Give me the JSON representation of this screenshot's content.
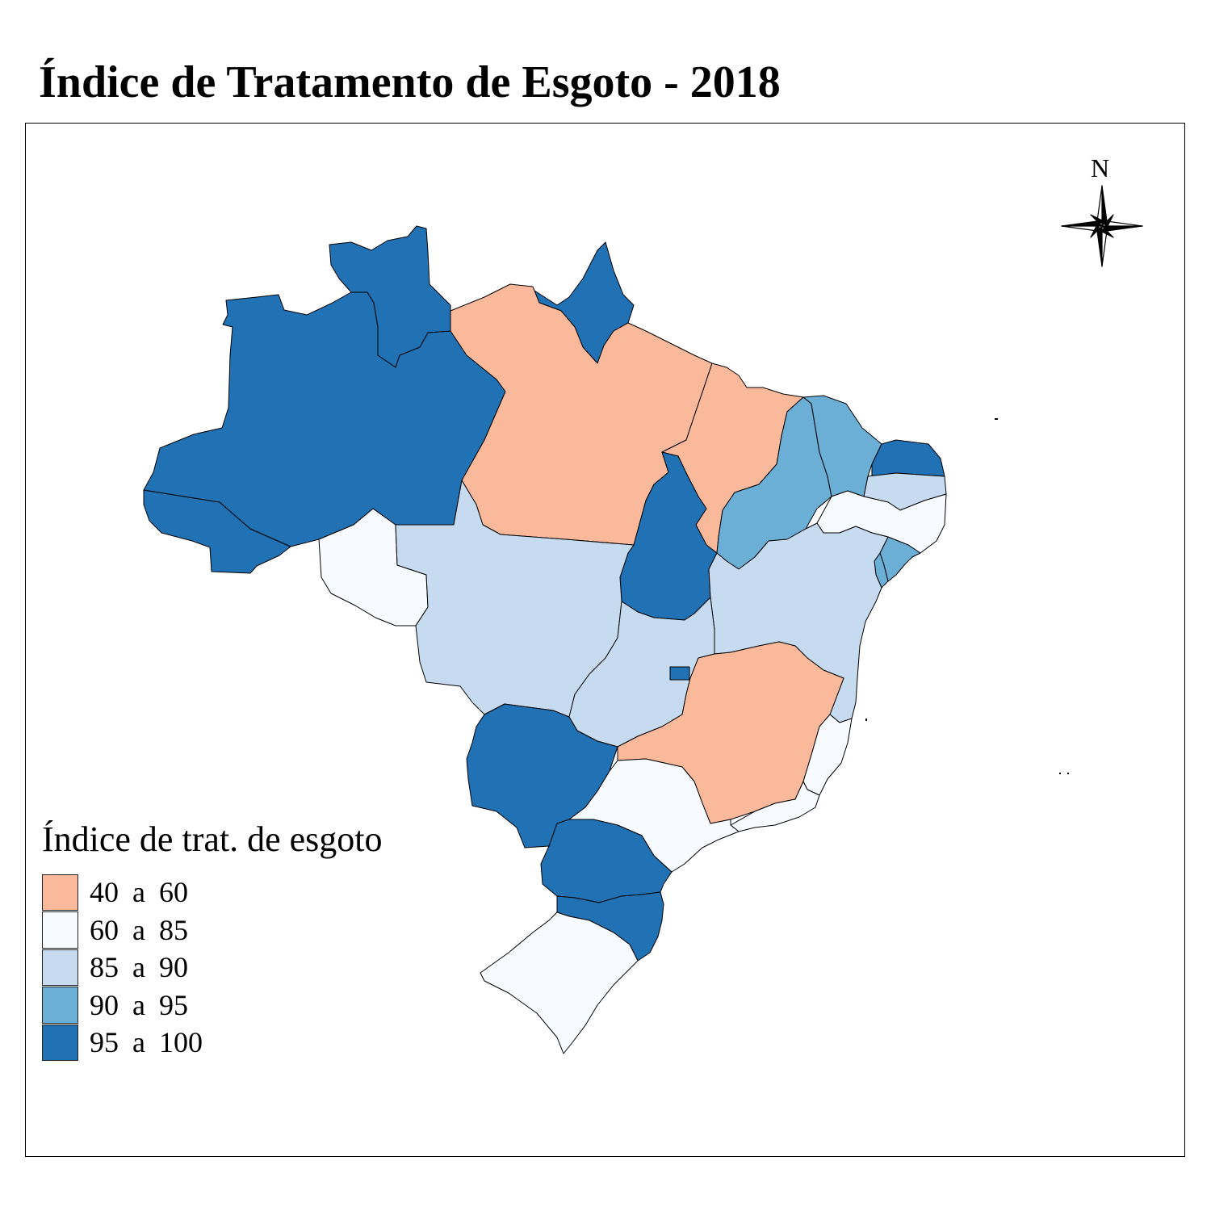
{
  "title": "Índice de Tratamento de Esgoto - 2018",
  "north_label": "N",
  "legend": {
    "title": "Índice de trat. de esgoto",
    "classes": [
      {
        "label": "40  a  60",
        "color": "#fbb99c"
      },
      {
        "label": "60  a  85",
        "color": "#f7fbff"
      },
      {
        "label": "85  a  90",
        "color": "#c6dbef"
      },
      {
        "label": "90  a  95",
        "color": "#6baed6"
      },
      {
        "label": "95  a  100",
        "color": "#2171b5"
      }
    ]
  },
  "regions": [
    {
      "name": "AC",
      "class": 4
    },
    {
      "name": "AM",
      "class": 4
    },
    {
      "name": "RR",
      "class": 4
    },
    {
      "name": "AP",
      "class": 4
    },
    {
      "name": "PA",
      "class": 0
    },
    {
      "name": "MA",
      "class": 0
    },
    {
      "name": "TO",
      "class": 4
    },
    {
      "name": "PI",
      "class": 3
    },
    {
      "name": "CE",
      "class": 3
    },
    {
      "name": "RN",
      "class": 4
    },
    {
      "name": "PB",
      "class": 2
    },
    {
      "name": "PE",
      "class": 1
    },
    {
      "name": "AL",
      "class": 3
    },
    {
      "name": "SE",
      "class": 3
    },
    {
      "name": "BA",
      "class": 2
    },
    {
      "name": "RO",
      "class": 1
    },
    {
      "name": "MT",
      "class": 2
    },
    {
      "name": "GO",
      "class": 2
    },
    {
      "name": "DF",
      "class": 4
    },
    {
      "name": "MS",
      "class": 4
    },
    {
      "name": "MG",
      "class": 0
    },
    {
      "name": "ES",
      "class": 1
    },
    {
      "name": "RJ",
      "class": 1
    },
    {
      "name": "SP",
      "class": 1
    },
    {
      "name": "PR",
      "class": 4
    },
    {
      "name": "SC",
      "class": 4
    },
    {
      "name": "RS",
      "class": 1
    }
  ]
}
